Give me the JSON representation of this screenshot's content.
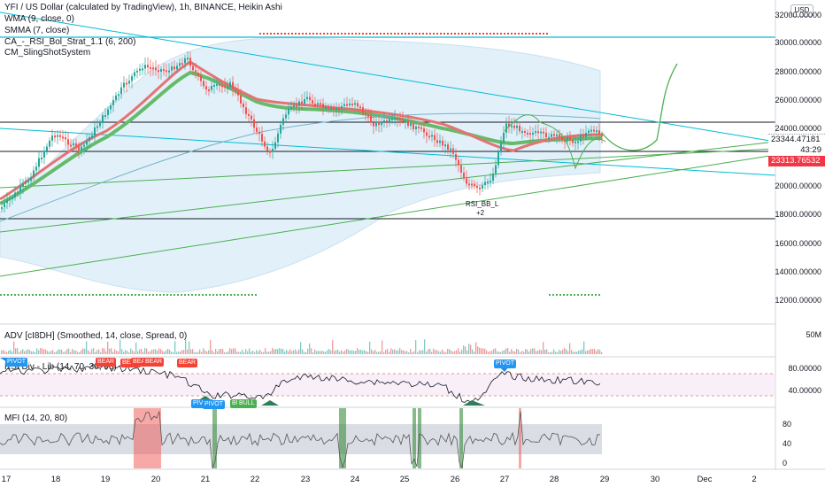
{
  "legends": {
    "title": "YFI / US Dollar (calculated by TradingView), 1h, BINANCE, Heikin Ashi",
    "wma": "WMA (9, close, 0)",
    "smma": "SMMA (7, close)",
    "strat": "CA_-_RSI_Bol_Strat_1.1 (6, 200)",
    "sling": "CM_SlingShotSystem",
    "adv": "ADV [cI8DH] (Smoothed, 14, close, Spread, 0)",
    "rsi": "RSI Div - Lib (14, 70, 30, 90)",
    "mfi": "MFI (14, 20, 80)"
  },
  "currency": "USD",
  "price_axis": [
    "32000.00000",
    "30000.00000",
    "28000.00000",
    "26000.00000",
    "24000.00000",
    "22000.00000",
    "20000.00000",
    "18000.00000",
    "16000.00000",
    "14000.00000",
    "12000.00000"
  ],
  "price_boxes": {
    "last": "23344.47181",
    "countdown": "43:29",
    "other": "23313.76532"
  },
  "adv_axis": [
    "50M"
  ],
  "rsi_axis": [
    "80.00000",
    "40.00000"
  ],
  "mfi_axis": [
    "80",
    "40",
    "0"
  ],
  "time_axis": [
    "17",
    "18",
    "19",
    "20",
    "21",
    "22",
    "23",
    "24",
    "25",
    "26",
    "27",
    "28",
    "29",
    "30",
    "Dec",
    "2"
  ],
  "annotations": {
    "rsi_bb": "RSI_BB_L",
    "rsi_bb_count": "+2",
    "tags": [
      "PIVOT",
      "BEAR",
      "BEAR",
      "BEAR",
      "BEAR",
      "BEAR",
      "PIVOT",
      "PIVOT",
      "PIVOT",
      "BULL",
      "BULL"
    ]
  },
  "colors": {
    "up": "#26a69a",
    "down": "#ef5350",
    "tag_blue": "#2196f3",
    "tag_red": "#f44336",
    "tag_green": "#4caf50",
    "cyan_line": "#00bcd4",
    "green_line": "#4caf50",
    "smma": "#66bb6a",
    "wma": "#e57373",
    "band_fill": "#d6eaf8"
  }
}
